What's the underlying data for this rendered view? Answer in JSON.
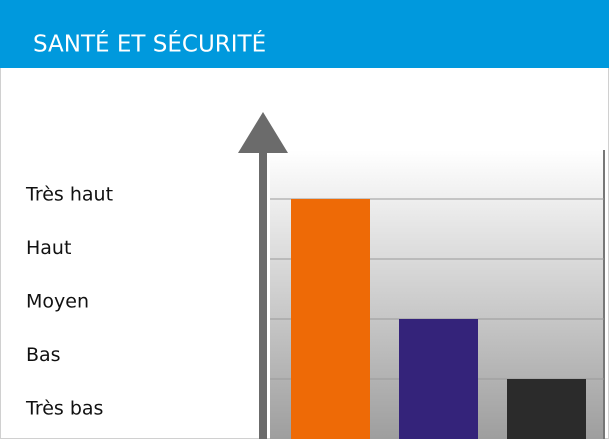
{
  "chart_data": {
    "type": "bar",
    "title": "SANTÉ ET SÉCURITÉ",
    "levels": [
      "Très bas",
      "Bas",
      "Moyen",
      "Haut",
      "Très haut"
    ],
    "categories": [
      null,
      null,
      null
    ],
    "values": [
      4,
      2,
      1
    ],
    "colors": [
      "#ee6a06",
      "#34237a",
      "#2b2b2b"
    ],
    "ylim": [
      0,
      5
    ],
    "yticks": [
      1,
      2,
      3,
      4
    ],
    "grid": true
  }
}
